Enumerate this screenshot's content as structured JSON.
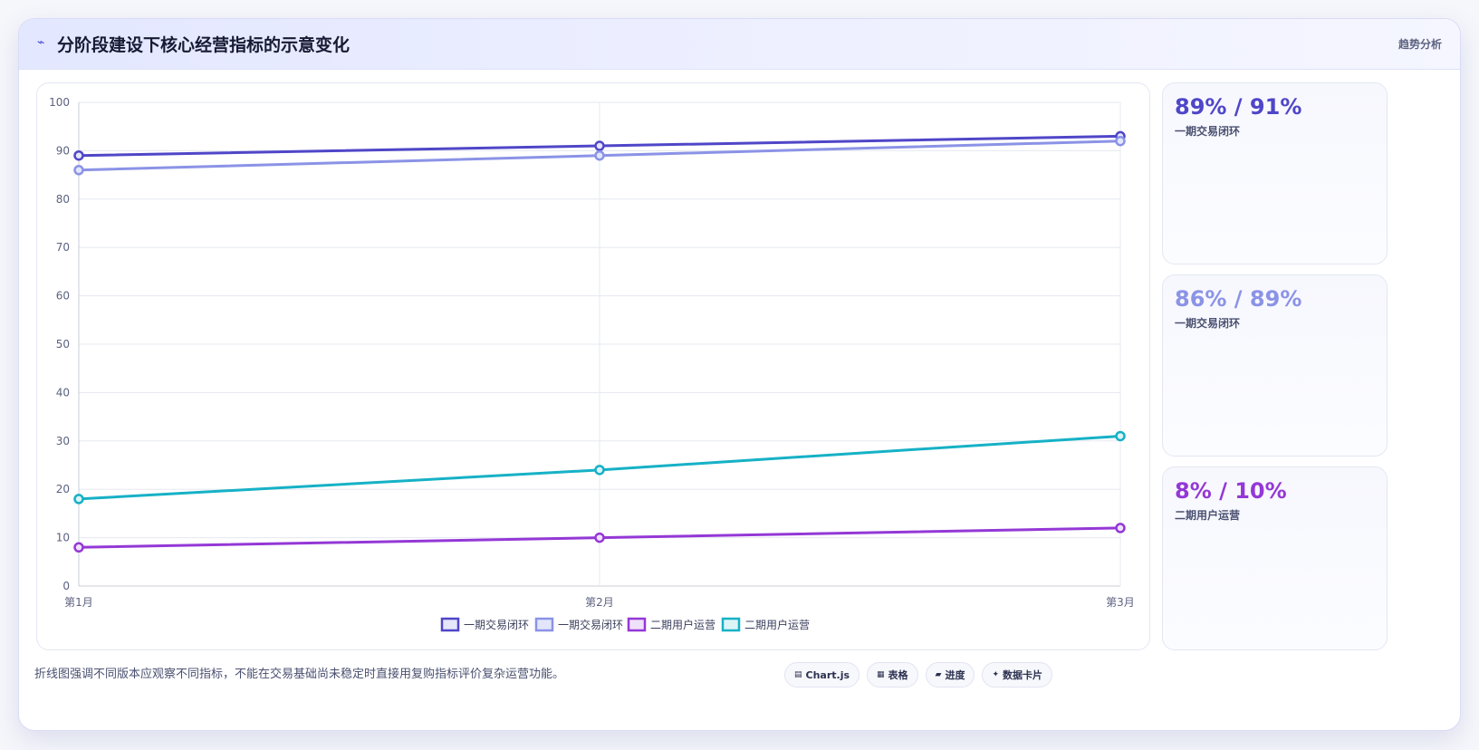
{
  "header": {
    "icon": "trend-line-icon",
    "title": "分阶段建设下核心经营指标的示意变化",
    "tag": "趋势分析"
  },
  "chart_data": {
    "type": "line",
    "categories": [
      "第1月",
      "第2月",
      "第3月"
    ],
    "ylim": [
      0,
      100
    ],
    "yticks": [
      0,
      10,
      20,
      30,
      40,
      50,
      60,
      70,
      80,
      90,
      100
    ],
    "grid": true,
    "legend_position": "bottom",
    "series": [
      {
        "name": "一期交易闭环",
        "values": [
          89,
          91,
          93
        ],
        "color": "#4f46c8",
        "fill": "#e6e6fb"
      },
      {
        "name": "一期交易闭环",
        "values": [
          86,
          89,
          92
        ],
        "color": "#8b93e6",
        "fill": "#e3e6fb"
      },
      {
        "name": "二期用户运营",
        "values": [
          8,
          10,
          12
        ],
        "color": "#9438d6",
        "fill": "#f0e1fb"
      },
      {
        "name": "二期用户运营",
        "values": [
          18,
          24,
          31
        ],
        "color": "#16b1c6",
        "fill": "#ddf4f7"
      }
    ]
  },
  "side_cards": [
    {
      "value": "89% / 91%",
      "label": "一期交易闭环",
      "color": "#4f46c8"
    },
    {
      "value": "86% / 89%",
      "label": "一期交易闭环",
      "color": "#8b93e6"
    },
    {
      "value": "8% / 10%",
      "label": "二期用户运营",
      "color": "#9438d6"
    }
  ],
  "footer": {
    "note": "折线图强调不同版本应观察不同指标，不能在交易基础尚未稳定时直接用复购指标评价复杂运营功能。",
    "badges": [
      {
        "icon": "chart-icon",
        "glyph": "▤",
        "label": "Chart.js"
      },
      {
        "icon": "table-icon",
        "glyph": "▦",
        "label": "表格"
      },
      {
        "icon": "progress-icon",
        "glyph": "▰",
        "label": "进度"
      },
      {
        "icon": "card-icon",
        "glyph": "✦",
        "label": "数据卡片"
      }
    ]
  }
}
